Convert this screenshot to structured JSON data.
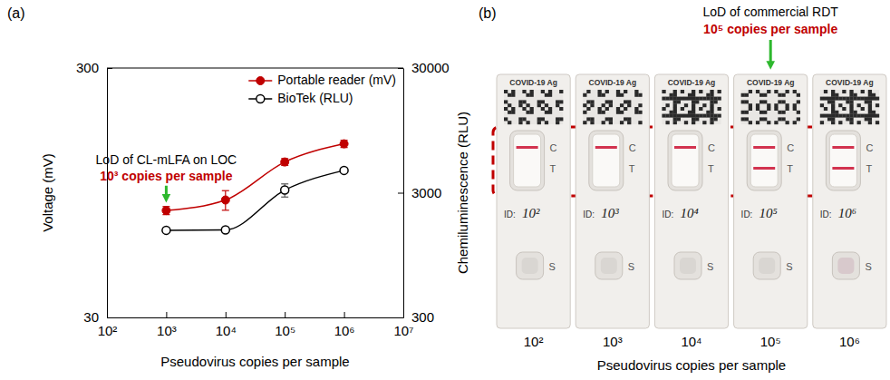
{
  "chart_data": {
    "type": "line",
    "panel_label": "(a)",
    "x_label": "Pseudovirus copies per sample",
    "y_label": "Voltage (mV)",
    "y2_label": "Chemiluminescence (RLU)",
    "log": true,
    "grid": false,
    "legend": "upper right",
    "x": [
      1000,
      10000,
      100000,
      1000000
    ],
    "xlim": [
      100,
      10000000
    ],
    "xticks": [
      {
        "value": 100,
        "label": "10²"
      },
      {
        "value": 1000,
        "label": "10³"
      },
      {
        "value": 10000,
        "label": "10⁴"
      },
      {
        "value": 100000,
        "label": "10⁵"
      },
      {
        "value": 1000000,
        "label": "10⁶"
      },
      {
        "value": 10000000,
        "label": "10⁷"
      }
    ],
    "ylim": [
      30,
      300
    ],
    "yticks": [
      30,
      300
    ],
    "y2lim": [
      300,
      30000
    ],
    "y2ticks": [
      300,
      3000,
      30000
    ],
    "series": [
      {
        "name": "Portable reader (mV)",
        "color": "#c00000",
        "marker": "circle",
        "line_style": "solid",
        "values": [
          80.5,
          88.7,
          126,
          149
        ],
        "errors": [
          3,
          8,
          4,
          5
        ]
      },
      {
        "name": "BioTek (RLU)",
        "color": "#000000",
        "marker": "open-circle",
        "line_style": "solid",
        "axis": "y2",
        "values": [
          1500,
          1510,
          3150,
          4530
        ],
        "errors": [
          50,
          70,
          380,
          150
        ]
      }
    ],
    "annotations": [
      {
        "text": "LoD of CL-mLFA on LOC",
        "highlight": "10³ copies per sample",
        "x": 1000
      }
    ]
  },
  "panel_b": {
    "label": "(b)",
    "x_label": "Pseudovirus copies per sample",
    "annotation": {
      "text": "LoD of commercial RDT",
      "highlight": "10⁵ copies per sample",
      "target": "10⁵"
    },
    "strips": [
      {
        "label": "10²",
        "header": "COVID-19 Ag",
        "control": "C",
        "test": "T",
        "id_prefix": "ID:",
        "id": "10²",
        "sample": "S",
        "control_line": true,
        "test_line": false
      },
      {
        "label": "10³",
        "header": "COVID-19 Ag",
        "control": "C",
        "test": "T",
        "id_prefix": "ID:",
        "id": "10³",
        "sample": "S",
        "control_line": true,
        "test_line": false
      },
      {
        "label": "10⁴",
        "header": "COVID-19 Ag",
        "control": "C",
        "test": "T",
        "id_prefix": "ID:",
        "id": "10⁴",
        "sample": "S",
        "control_line": true,
        "test_line": false
      },
      {
        "label": "10⁵",
        "header": "COVID-19 Ag",
        "control": "C",
        "test": "T",
        "id_prefix": "ID:",
        "id": "10⁵",
        "sample": "S",
        "control_line": true,
        "test_line": true
      },
      {
        "label": "10⁶",
        "header": "COVID-19 Ag",
        "control": "C",
        "test": "T",
        "id_prefix": "ID:",
        "id": "10⁶",
        "sample": "S",
        "control_line": true,
        "test_line": true
      }
    ]
  }
}
